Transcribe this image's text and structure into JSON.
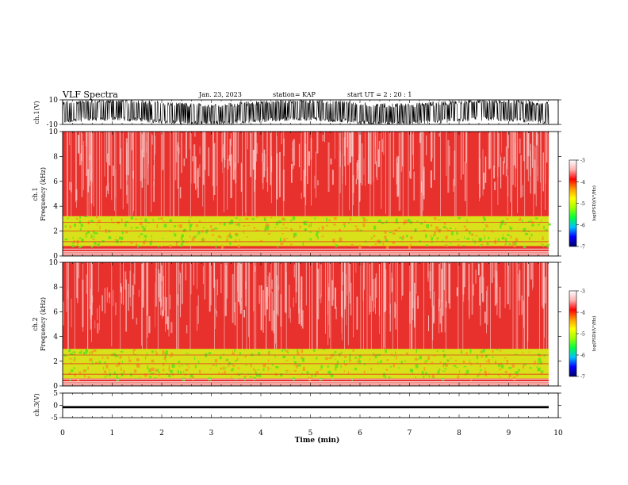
{
  "header": {
    "title": "VLF Spectra",
    "date": "Jan. 23, 2023",
    "station": "station= KAP",
    "start": "start  UT  =   2  : 20 : 1"
  },
  "colors": {
    "background": "#ffffff",
    "axis": "#000000",
    "spectrogram_base": "#e8302c",
    "spectrogram_light": "#f7b8b6",
    "band_yellow": "#d9e11a",
    "band_green": "#5fe01c",
    "colormap": [
      "#000066",
      "#0000ff",
      "#00c0ff",
      "#00ff40",
      "#9bff00",
      "#ffff00",
      "#ff9900",
      "#ff0000",
      "#ffb0b0",
      "#ffffff"
    ]
  },
  "chart_data": [
    {
      "type": "line",
      "panel": "ch1-waveform",
      "ylabel": "ch.1(V)",
      "ylim": [
        -10,
        10
      ],
      "ytick_labels": [
        "10",
        "-10"
      ],
      "x_range_min": [
        0,
        9.82
      ],
      "description_values": "dense oscillating waveform, envelope roughly +8 to -8 V",
      "envelope_min": [
        -8,
        -9,
        -7,
        -8,
        -6,
        -8,
        -9,
        -8,
        -7,
        -8
      ],
      "envelope_max": [
        8,
        9,
        7,
        8,
        6,
        8,
        9,
        8,
        7,
        8
      ]
    },
    {
      "type": "heatmap",
      "panel": "ch1-spectrogram",
      "ylabel": "ch.1\nFrequency (kHz)",
      "ylabel_line1": "ch.1",
      "ylabel_line2": "Frequency (kHz)",
      "ylim": [
        0,
        10
      ],
      "ytick_labels": [
        "0",
        "2",
        "4",
        "6",
        "8",
        "10"
      ],
      "xlim": [
        0,
        9.82
      ],
      "band_khz": [
        0.8,
        3.2
      ],
      "colorbar": {
        "label": "log(PSD)(V²/Hz)",
        "range": [
          -7,
          -3
        ],
        "tick_labels": [
          "-7",
          "-6",
          "-5",
          "-4",
          "-3"
        ]
      }
    },
    {
      "type": "heatmap",
      "panel": "ch2-spectrogram",
      "ylabel_line1": "ch.2",
      "ylabel_line2": "Frequency (kHz)",
      "ylim": [
        0,
        10
      ],
      "ytick_labels": [
        "0",
        "2",
        "4",
        "6",
        "8",
        "10"
      ],
      "xlim": [
        0,
        9.82
      ],
      "band_khz": [
        0.6,
        3.0
      ],
      "colorbar": {
        "label": "log(PSD)(V²/Hz)",
        "range": [
          -7,
          -3
        ],
        "tick_labels": [
          "-7",
          "-6",
          "-5",
          "-4",
          "-3"
        ]
      }
    },
    {
      "type": "line",
      "panel": "ch3-waveform",
      "ylabel": "ch.3(V)",
      "ylim": [
        -5,
        5
      ],
      "ytick_labels": [
        "5",
        "0",
        "-5"
      ],
      "level_v": [
        -1.2,
        -0.3
      ],
      "xlabel": "Time (min)",
      "xlim": [
        0,
        10
      ],
      "xtick_labels": [
        "0",
        "1",
        "2",
        "3",
        "4",
        "5",
        "6",
        "7",
        "8",
        "9",
        "10"
      ]
    }
  ]
}
